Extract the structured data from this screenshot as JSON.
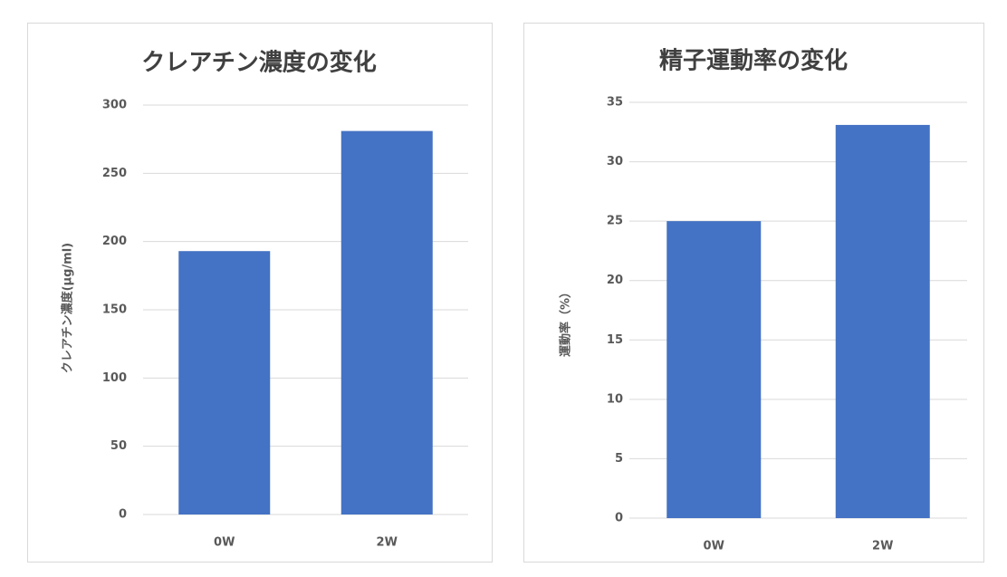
{
  "chart_data": [
    {
      "type": "bar",
      "title": "クレアチン濃度の変化",
      "y_label": "クレアチン濃度(μg/ml)",
      "categories": [
        "0W",
        "2W"
      ],
      "values": [
        193,
        281
      ],
      "color": "#4472c4",
      "ylim": [
        0,
        300
      ],
      "yticks": [
        0,
        50,
        100,
        150,
        200,
        250,
        300
      ],
      "grid": true
    },
    {
      "type": "bar",
      "title": "精子運動率の変化",
      "y_label": "運動率（%）",
      "categories": [
        "0W",
        "2W"
      ],
      "values": [
        25,
        33.1
      ],
      "color": "#4472c4",
      "ylim": [
        0,
        35
      ],
      "yticks": [
        0,
        5,
        10,
        15,
        20,
        25,
        30,
        35
      ],
      "grid": true
    }
  ]
}
